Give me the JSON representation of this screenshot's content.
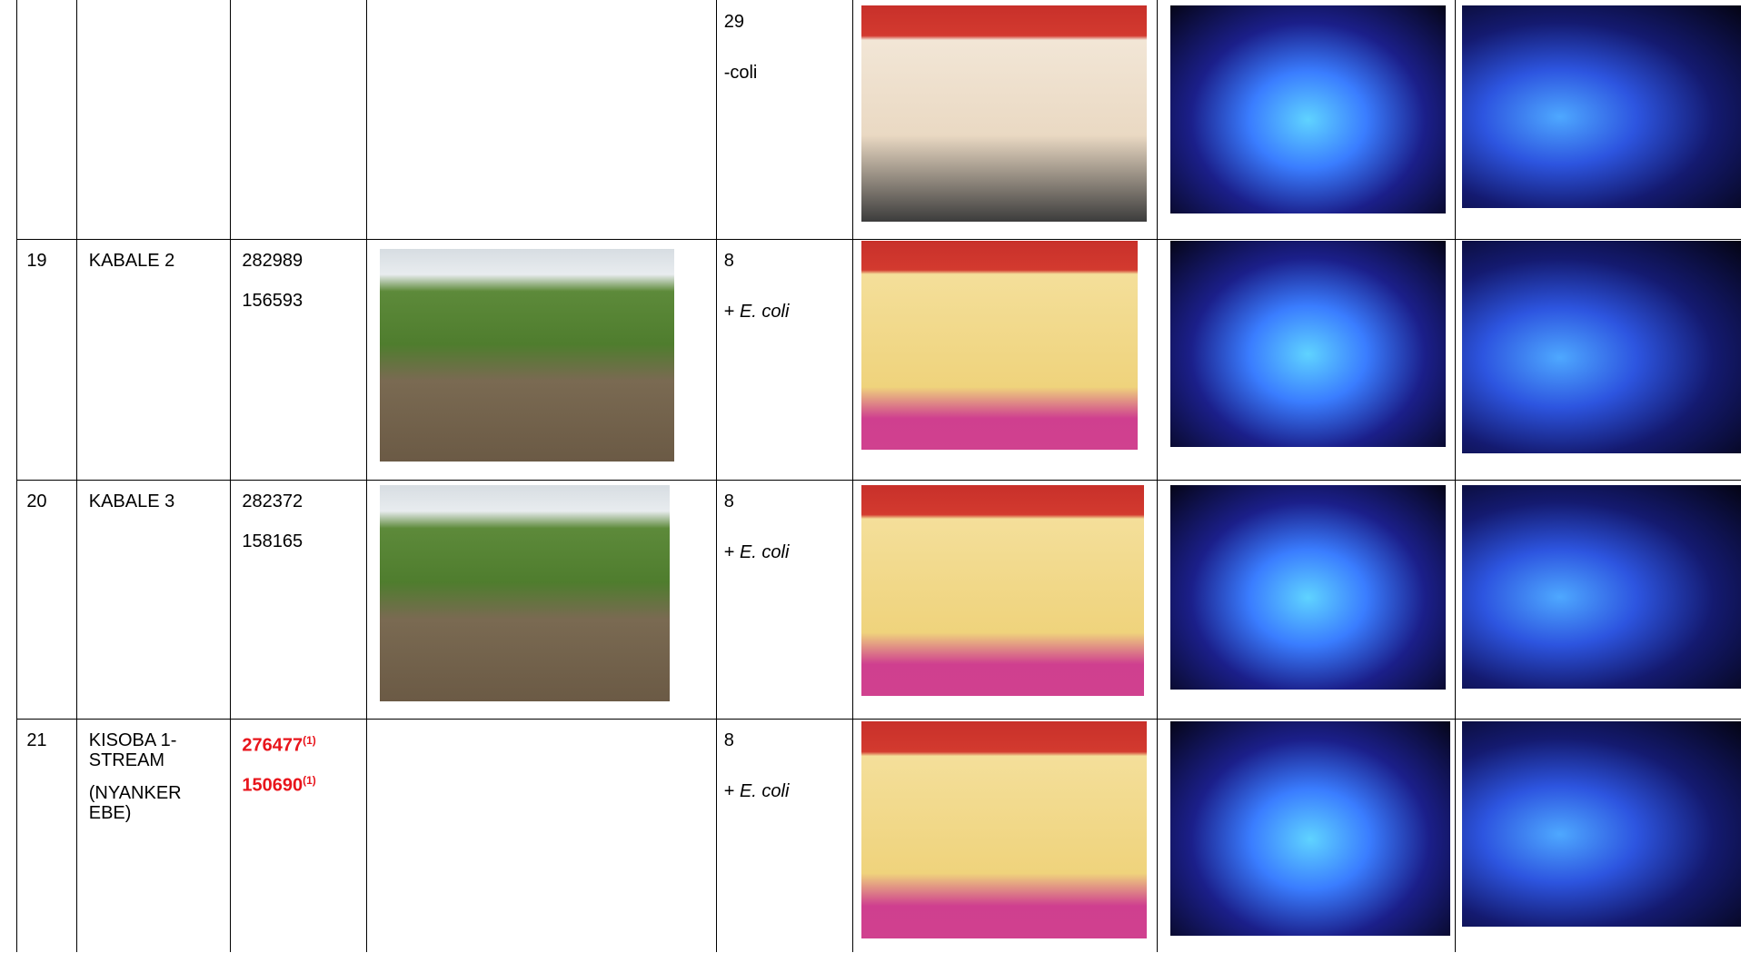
{
  "table": {
    "rows": [
      {
        "no": null,
        "name_lines": [],
        "note_lines": [],
        "coords": [],
        "count": "29",
        "result": {
          "text": "-coli"
        }
      },
      {
        "no": "19",
        "name_lines": [
          "KABALE 2"
        ],
        "note_lines": [],
        "coords": [
          {
            "value": "282989"
          },
          {
            "value": "156593"
          }
        ],
        "count": "8",
        "result": {
          "prefix": "+",
          "organism": "E. coli"
        }
      },
      {
        "no": "20",
        "name_lines": [
          "KABALE 3"
        ],
        "note_lines": [],
        "coords": [
          {
            "value": "282372"
          },
          {
            "value": "158165"
          }
        ],
        "count": "8",
        "result": {
          "prefix": "+",
          "organism": "E. coli"
        }
      },
      {
        "no": "21",
        "name_lines": [
          "KISOBA 1-",
          "STREAM"
        ],
        "note_lines": [
          "(NYANKER",
          "EBE)"
        ],
        "coords": [
          {
            "value": "276477",
            "sup": "(1)",
            "color": "#e8141b"
          },
          {
            "value": "150690",
            "sup": "(1)",
            "color": "#e8141b"
          }
        ],
        "count": "8",
        "result": {
          "prefix": "+",
          "organism": "E. coli"
        }
      }
    ]
  }
}
